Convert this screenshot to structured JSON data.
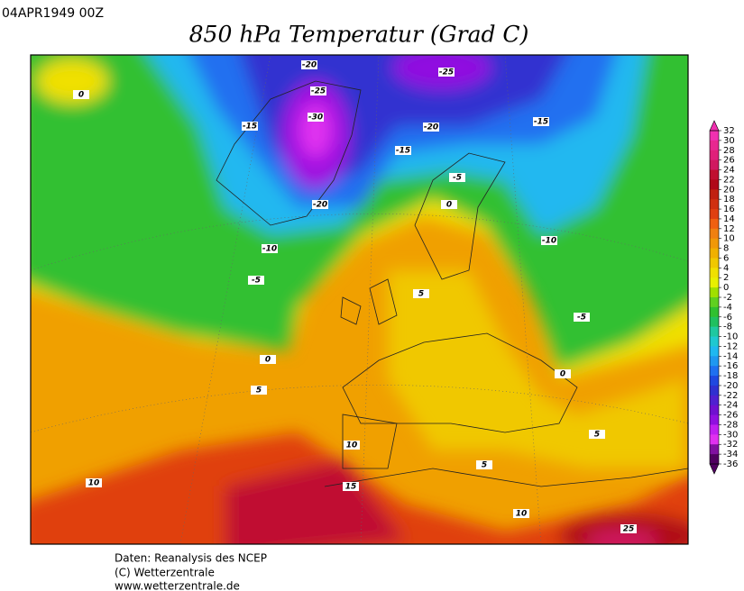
{
  "header": {
    "date": "04APR1949 00Z",
    "title": "850 hPa Temperatur (Grad C)"
  },
  "footer": {
    "lines": [
      "Daten: Reanalysis des NCEP",
      "(C) Wetterzentrale",
      "www.wetterzentrale.de"
    ]
  },
  "colorbar": {
    "ticks": [
      32,
      30,
      28,
      26,
      24,
      22,
      20,
      18,
      16,
      14,
      12,
      10,
      8,
      6,
      4,
      2,
      0,
      -2,
      -4,
      -6,
      -8,
      -10,
      -12,
      -14,
      -16,
      -18,
      -20,
      -22,
      -24,
      -26,
      -28,
      -30,
      -32,
      -34,
      -36
    ],
    "colors": [
      "#f030b0",
      "#e82890",
      "#e0207a",
      "#d01860",
      "#c01030",
      "#b00818",
      "#c02010",
      "#d03010",
      "#e04010",
      "#f06010",
      "#f08010",
      "#f09808",
      "#f0b000",
      "#f0c800",
      "#f0e000",
      "#e8f000",
      "#a0e000",
      "#60d020",
      "#30c030",
      "#20c060",
      "#20c8a0",
      "#20c8d0",
      "#20b8f0",
      "#2098f0",
      "#2070f0",
      "#2048e0",
      "#3030d0",
      "#5020d0",
      "#7010d0",
      "#9010e0",
      "#c020f0",
      "#e030f0",
      "#8010a0",
      "#500060"
    ]
  },
  "contour_labels": [
    -20,
    -25,
    -25,
    -30,
    -15,
    -20,
    -15,
    -15,
    -5,
    0,
    -20,
    0,
    -10,
    -10,
    -5,
    5,
    -5,
    0,
    0,
    5,
    5,
    10,
    5,
    10,
    15,
    10,
    25
  ]
}
